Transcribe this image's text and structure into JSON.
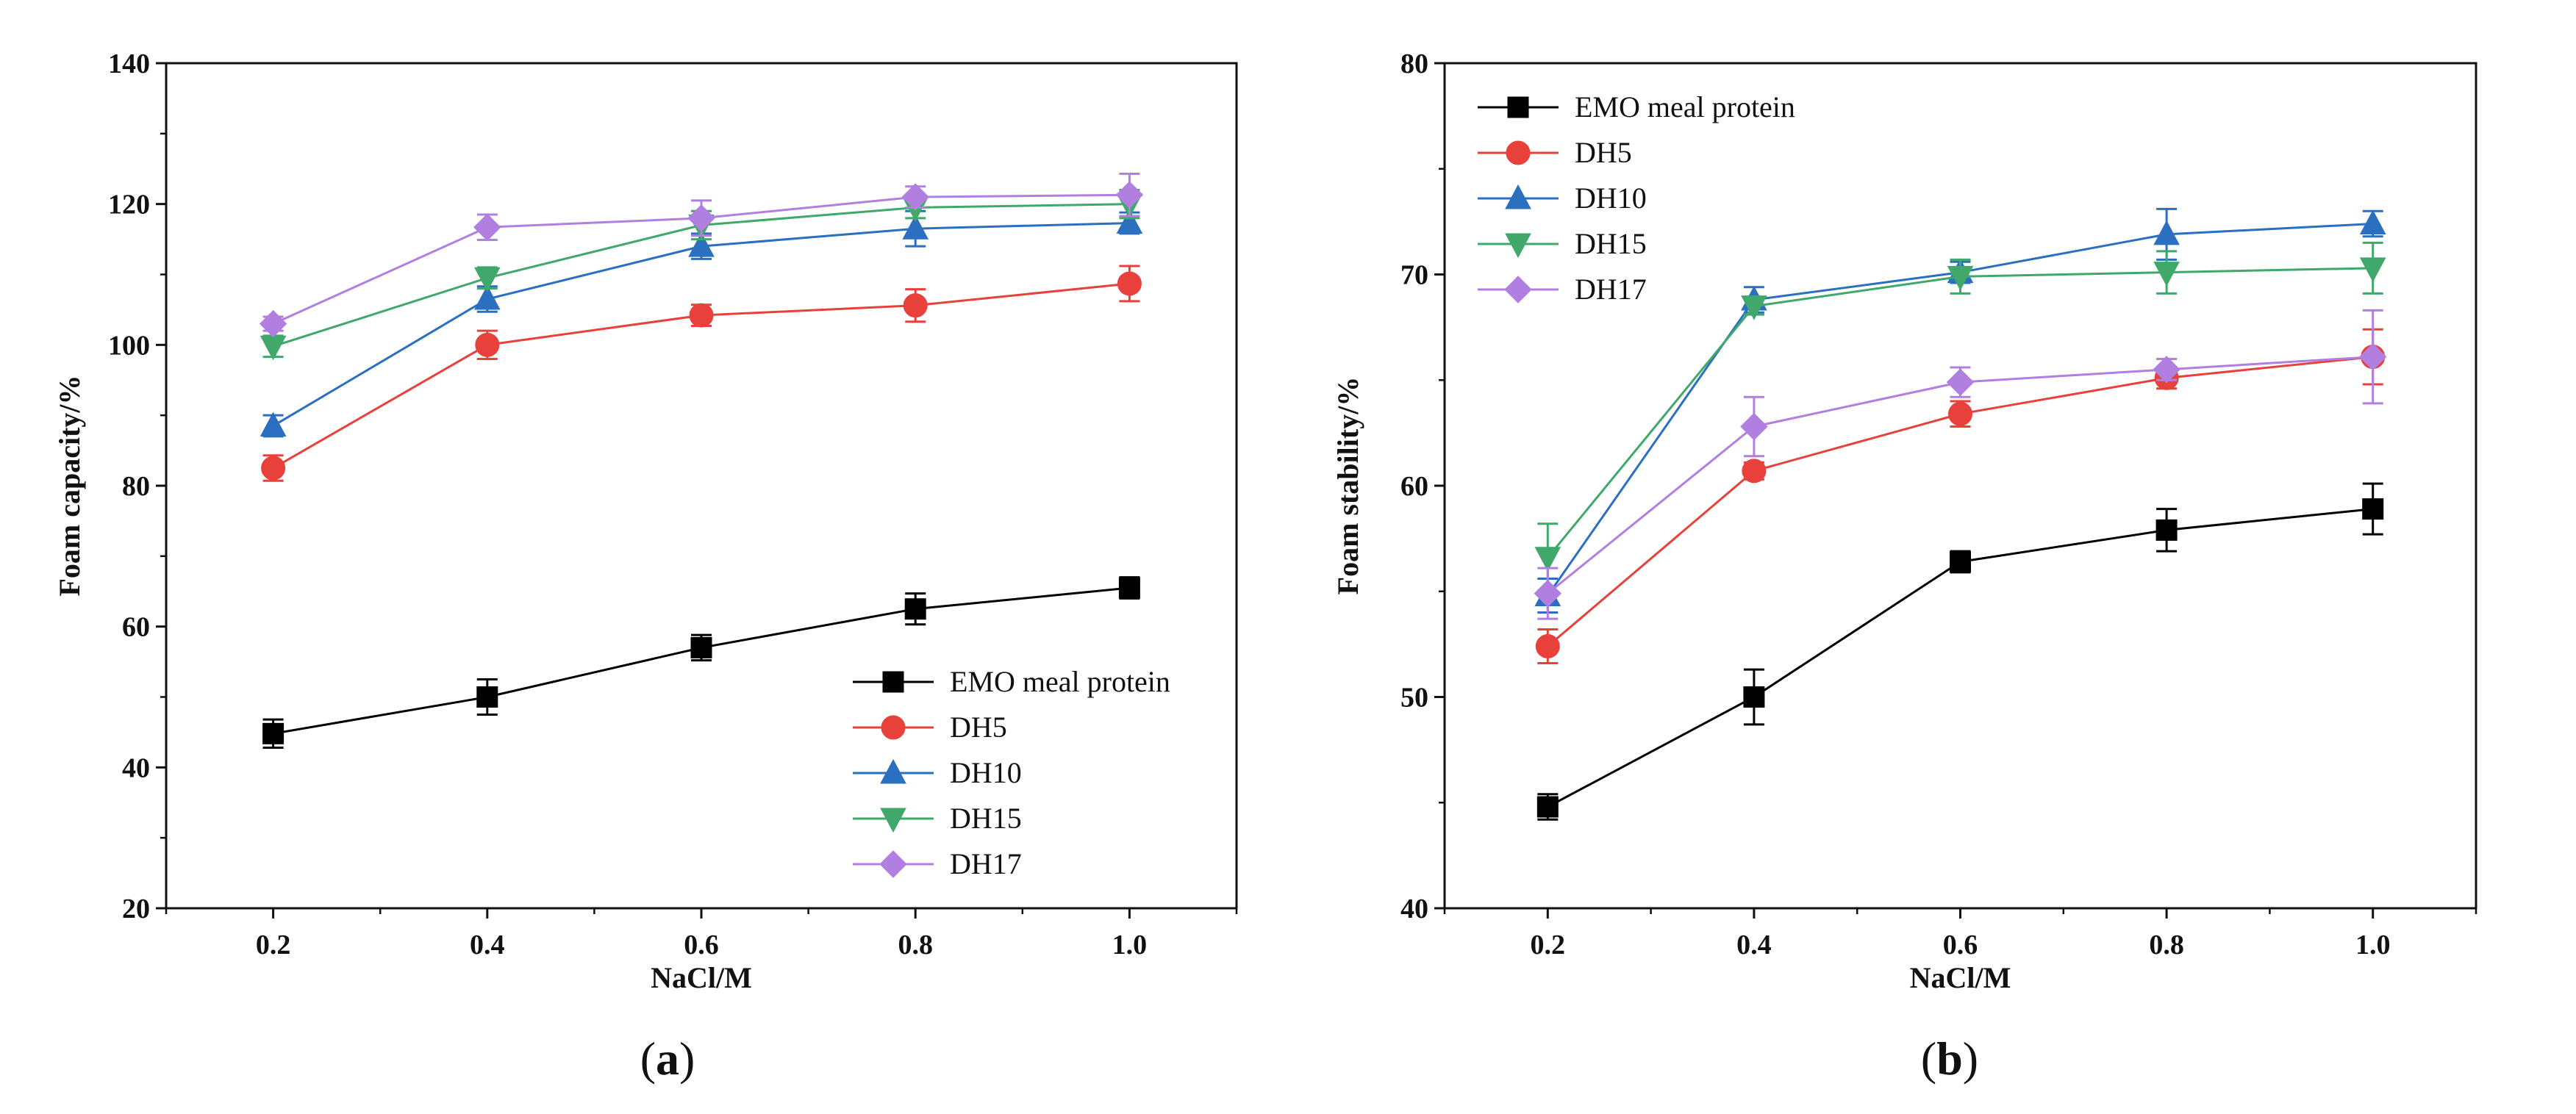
{
  "chart_data": [
    {
      "type": "line",
      "panel_label": "a",
      "xlabel": "NaCl/M",
      "ylabel": "Foam capacity/%",
      "x": [
        0.2,
        0.4,
        0.6,
        0.8,
        1.0
      ],
      "x_tick_labels": [
        "0.2",
        "0.4",
        "0.6",
        "0.8",
        "1.0"
      ],
      "xlim": [
        0.1,
        1.1
      ],
      "ylim": [
        20,
        140
      ],
      "y_ticks": [
        20,
        40,
        60,
        80,
        100,
        120,
        140
      ],
      "y_tick_labels": [
        "20",
        "40",
        "60",
        "80",
        "100",
        "120",
        "140"
      ],
      "legend_position": "bottom-right",
      "series": [
        {
          "name": "EMO meal protein",
          "color": "#000000",
          "marker": "square",
          "values": [
            44.8,
            50.0,
            57.0,
            62.5,
            65.5
          ],
          "errors": [
            2.0,
            2.5,
            1.8,
            2.2,
            1.5
          ]
        },
        {
          "name": "DH5",
          "color": "#e8413b",
          "marker": "circle",
          "values": [
            82.5,
            100.0,
            104.2,
            105.6,
            108.7
          ],
          "errors": [
            1.8,
            2.0,
            1.5,
            2.3,
            2.5
          ]
        },
        {
          "name": "DH10",
          "color": "#2a6fc0",
          "marker": "triangle-up",
          "values": [
            88.5,
            106.5,
            114.0,
            116.5,
            117.3
          ],
          "errors": [
            1.5,
            1.8,
            1.8,
            2.5,
            1.5
          ]
        },
        {
          "name": "DH15",
          "color": "#3fa86a",
          "marker": "triangle-down",
          "values": [
            99.8,
            109.5,
            117.0,
            119.5,
            120.0
          ],
          "errors": [
            1.5,
            1.5,
            2.0,
            1.5,
            2.0
          ]
        },
        {
          "name": "DH17",
          "color": "#b07fe0",
          "marker": "diamond",
          "values": [
            103.0,
            116.7,
            118.0,
            121.0,
            121.3
          ],
          "errors": [
            1.0,
            1.8,
            2.5,
            1.5,
            3.0
          ]
        }
      ]
    },
    {
      "type": "line",
      "panel_label": "b",
      "xlabel": "NaCl/M",
      "ylabel": "Foam stability/%",
      "x": [
        0.2,
        0.4,
        0.6,
        0.8,
        1.0
      ],
      "x_tick_labels": [
        "0.2",
        "0.4",
        "0.6",
        "0.8",
        "1.0"
      ],
      "xlim": [
        0.1,
        1.1
      ],
      "ylim": [
        40,
        80
      ],
      "y_ticks": [
        40,
        50,
        60,
        70,
        80
      ],
      "y_tick_labels": [
        "40",
        "50",
        "60",
        "70",
        "80"
      ],
      "legend_position": "top-left",
      "series": [
        {
          "name": "EMO meal protein",
          "color": "#000000",
          "marker": "square",
          "values": [
            44.8,
            50.0,
            56.4,
            57.9,
            58.9
          ],
          "errors": [
            0.6,
            1.3,
            0.5,
            1.0,
            1.2
          ]
        },
        {
          "name": "DH5",
          "color": "#e8413b",
          "marker": "circle",
          "values": [
            52.4,
            60.7,
            63.4,
            65.1,
            66.1
          ],
          "errors": [
            0.8,
            0.4,
            0.6,
            0.5,
            1.3
          ]
        },
        {
          "name": "DH10",
          "color": "#2a6fc0",
          "marker": "triangle-up",
          "values": [
            54.8,
            68.8,
            70.1,
            71.9,
            72.4
          ],
          "errors": [
            0.8,
            0.6,
            0.5,
            1.2,
            0.6
          ]
        },
        {
          "name": "DH15",
          "color": "#3fa86a",
          "marker": "triangle-down",
          "values": [
            56.6,
            68.5,
            69.9,
            70.1,
            70.3
          ],
          "errors": [
            1.6,
            0.4,
            0.8,
            1.0,
            1.2
          ]
        },
        {
          "name": "DH17",
          "color": "#b07fe0",
          "marker": "diamond",
          "values": [
            54.9,
            62.8,
            64.9,
            65.5,
            66.1
          ],
          "errors": [
            1.2,
            1.4,
            0.7,
            0.5,
            2.2
          ]
        }
      ]
    }
  ]
}
